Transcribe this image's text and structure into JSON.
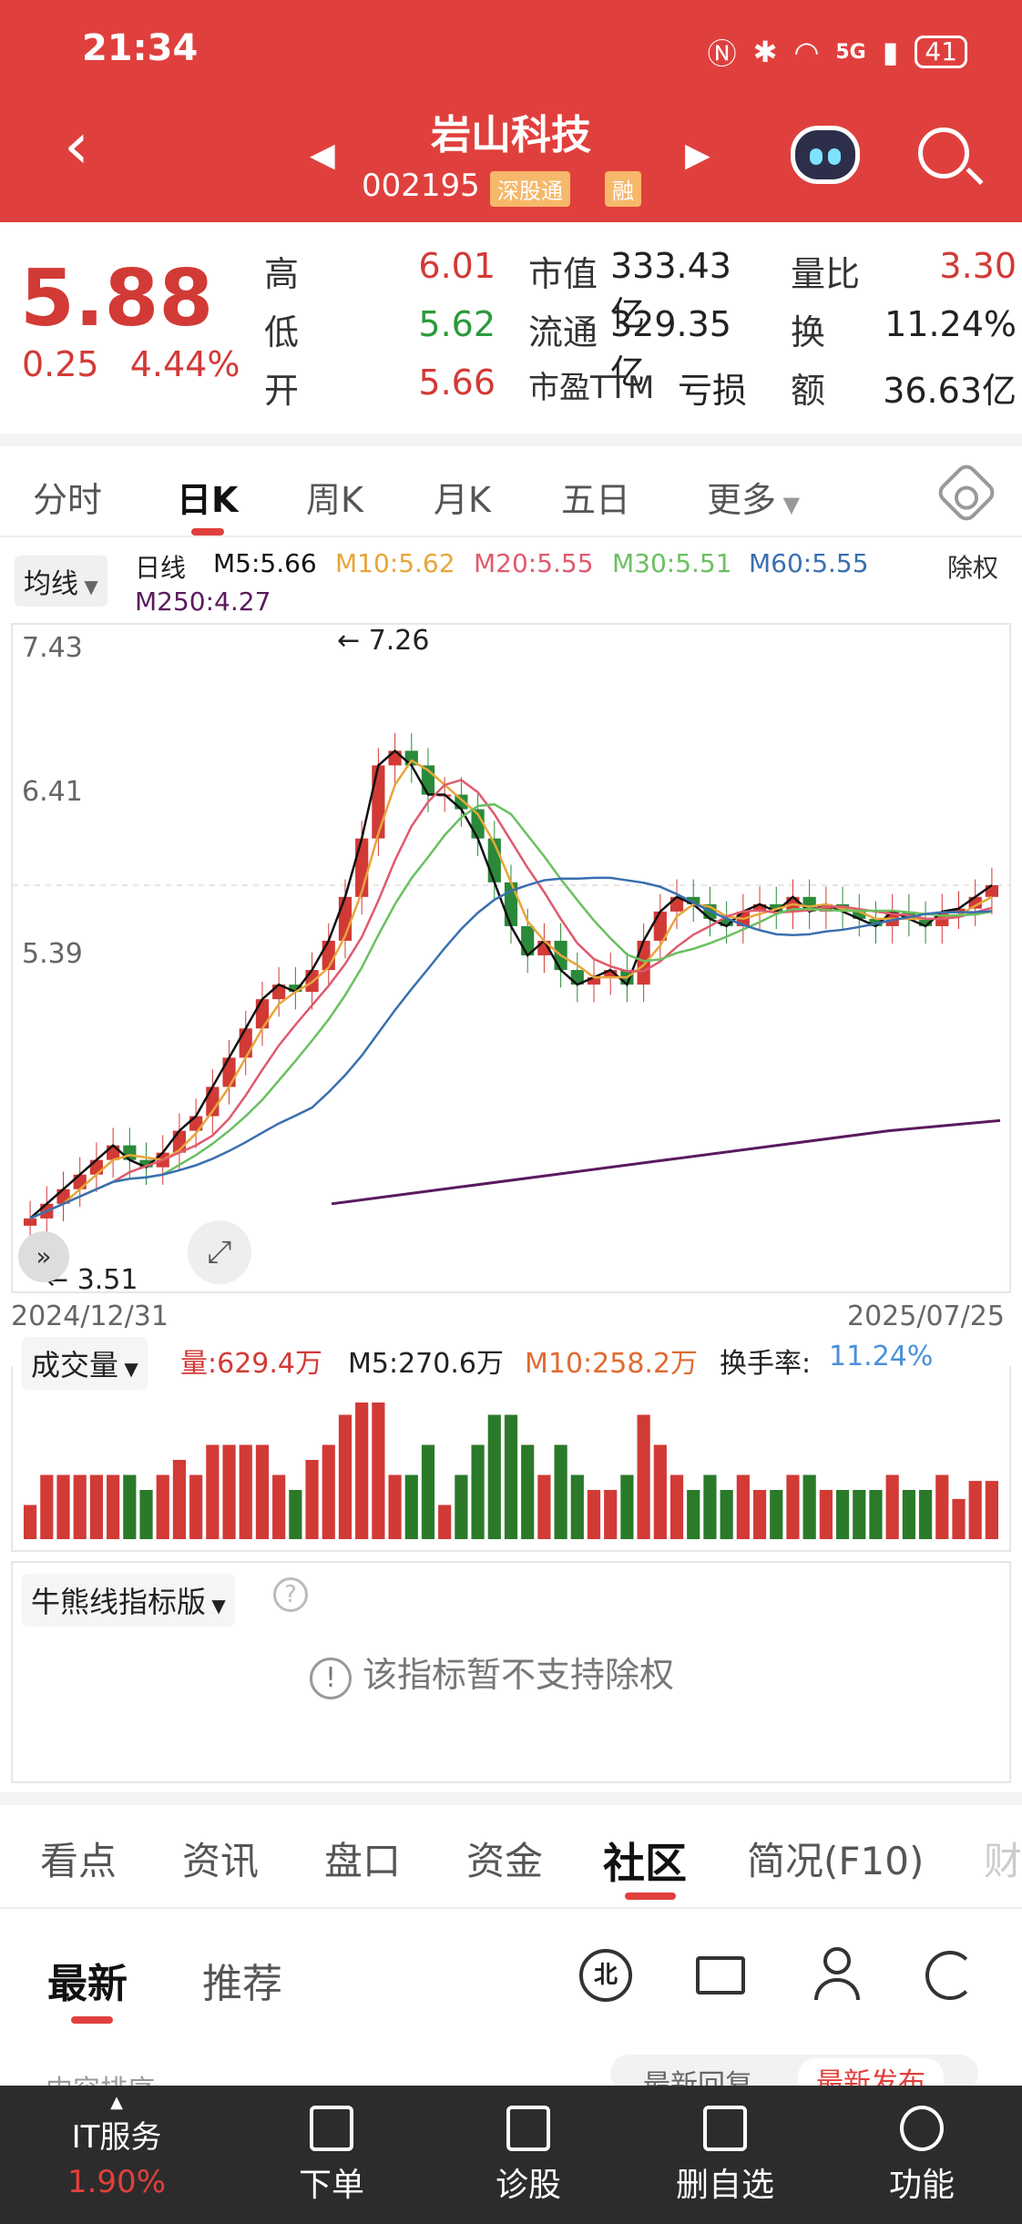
{
  "status": {
    "time": "21:34",
    "network": "5G",
    "battery": "41"
  },
  "header": {
    "title": "岩山科技",
    "code": "002195",
    "tags": [
      "深股通",
      "融"
    ],
    "back_icon": "chevron-left-icon",
    "robot_icon": "assistant-robot-icon",
    "search_icon": "search-icon"
  },
  "quote": {
    "price": "5.88",
    "change": "0.25",
    "change_pct": "4.44%",
    "high_label": "高",
    "high": "6.01",
    "low_label": "低",
    "low": "5.62",
    "open_label": "开",
    "open": "5.66",
    "mktcap_label": "市值",
    "mktcap": "333.43亿",
    "float_label": "流通",
    "float": "329.35亿",
    "pe_label": "市盈TTM",
    "pe": "亏损",
    "vratio_label": "量比",
    "vratio": "3.30",
    "turnover_label": "换",
    "turnover": "11.24%",
    "amount_label": "额",
    "amount": "36.63亿"
  },
  "ktabs": [
    "分时",
    "日K",
    "周K",
    "月K",
    "五日",
    "更多"
  ],
  "ktab_active": 1,
  "ma": {
    "selector": "均线",
    "line_label": "日线",
    "m5": "M5:5.66",
    "m10": "M10:5.62",
    "m20": "M20:5.55",
    "m30": "M30:5.51",
    "m60": "M60:5.55",
    "m250": "M250:4.27",
    "exright": "除权",
    "colors": {
      "m5": "#111111",
      "m10": "#e8a53a",
      "m20": "#e05a6e",
      "m30": "#6ac060",
      "m60": "#3a6fb0",
      "m250": "#5a1a5e"
    }
  },
  "chart_data": {
    "type": "candlestick",
    "y_ticks": [
      "7.43",
      "6.41",
      "5.39"
    ],
    "high_mark": "7.26",
    "low_mark": "3.51",
    "x_start": "2024/12/31",
    "x_end": "2025/07/25",
    "ylim": [
      3.3,
      7.6
    ],
    "close_series": [
      3.6,
      3.7,
      3.8,
      3.9,
      4.0,
      4.1,
      4.0,
      3.95,
      4.05,
      4.2,
      4.3,
      4.5,
      4.7,
      4.9,
      5.1,
      5.2,
      5.15,
      5.3,
      5.5,
      5.8,
      6.2,
      6.7,
      6.8,
      6.7,
      6.5,
      6.5,
      6.4,
      6.2,
      5.9,
      5.6,
      5.4,
      5.5,
      5.3,
      5.2,
      5.25,
      5.3,
      5.2,
      5.5,
      5.7,
      5.8,
      5.75,
      5.65,
      5.6,
      5.7,
      5.75,
      5.7,
      5.8,
      5.7,
      5.75,
      5.7,
      5.65,
      5.6,
      5.7,
      5.65,
      5.6,
      5.7,
      5.72,
      5.8,
      5.88
    ],
    "m250_series": [
      3.7,
      3.8,
      3.9,
      4.0,
      4.1,
      4.2,
      4.27
    ]
  },
  "volume": {
    "selector": "成交量",
    "vol": "量:629.4万",
    "m5": "M5:270.6万",
    "m10": "M10:258.2万",
    "turnover_label": "换手率:",
    "turnover": "11.24%"
  },
  "indicator": {
    "selector": "牛熊线指标版",
    "help_icon": "help-icon",
    "notice": "该指标暂不支持除权"
  },
  "subtabs": [
    "看点",
    "资讯",
    "盘口",
    "资金",
    "社区",
    "简况(F10)",
    "财"
  ],
  "subtab_active": 4,
  "community": {
    "tabs": [
      "最新",
      "推荐"
    ],
    "active": 0,
    "sort_label": "内容排序",
    "sort_options": [
      "最新回复",
      "最新发布"
    ]
  },
  "bottombar": {
    "sector_name": "IT服务",
    "sector_pct": "1.90%",
    "items": [
      "下单",
      "诊股",
      "删自选",
      "功能"
    ]
  }
}
